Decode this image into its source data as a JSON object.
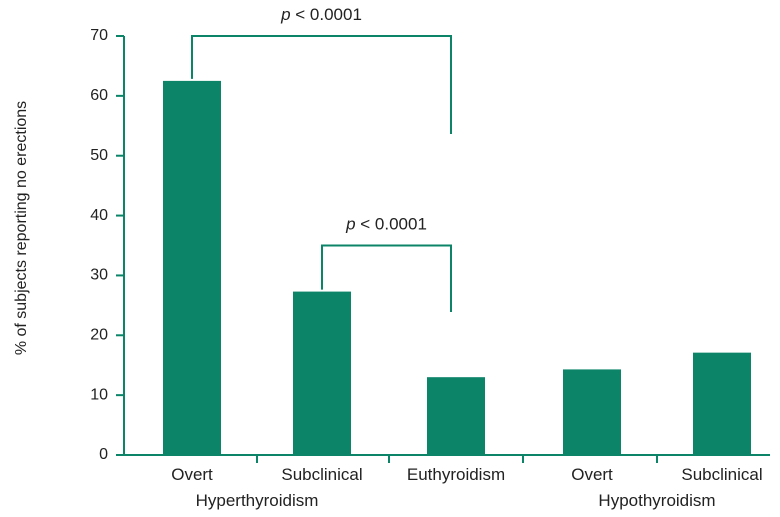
{
  "chart_data": {
    "type": "bar",
    "categories": [
      "Overt",
      "Subclinical",
      "Euthyroidism",
      "Overt",
      "Subclinical"
    ],
    "values": [
      62.5,
      27.3,
      13.0,
      14.3,
      17.1
    ],
    "groups": [
      {
        "label": "Hyperthyroidism",
        "categories": [
          0,
          1
        ]
      },
      {
        "label": "Hypothyroidism",
        "categories": [
          3,
          4
        ]
      }
    ],
    "ylabel": "% of subjects reporting no erections",
    "xlabel": "",
    "ylim": [
      0,
      70
    ],
    "yticks": [
      0,
      10,
      20,
      30,
      40,
      50,
      60,
      70
    ],
    "grid": false,
    "legend": "none",
    "bar_color": "#0b8468",
    "annotations": [
      {
        "text_italic": "p",
        "text_rest": " < 0.0001",
        "from": 0,
        "to": 2,
        "bracket_top": 70
      },
      {
        "text_italic": "p",
        "text_rest": " < 0.0001",
        "from": 1,
        "to": 2,
        "bracket_top": 35
      }
    ]
  }
}
